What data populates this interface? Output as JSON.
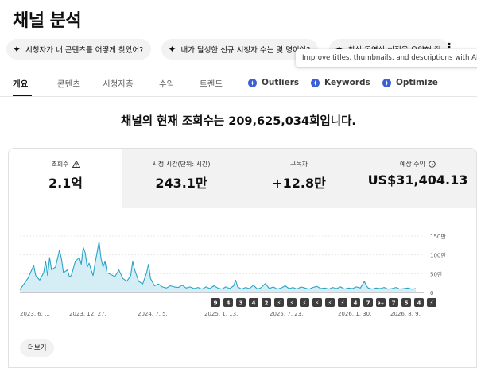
{
  "page": {
    "title": "채널 분석"
  },
  "chips": [
    {
      "label": "시청자가 내 콘텐츠를 어떻게 찾았어?"
    },
    {
      "label": "내가 달성한 신규 시청자 수는 몇 명이야?"
    },
    {
      "label": "최신 동영상 실적을 요약해 줘"
    }
  ],
  "tooltip": {
    "text": "Improve titles, thumbnails, and descriptions with AI su"
  },
  "tabs": [
    {
      "label": "개요",
      "active": true
    },
    {
      "label": "콘텐츠"
    },
    {
      "label": "시청자층"
    },
    {
      "label": "수익"
    },
    {
      "label": "트렌드"
    },
    {
      "label": "Outliers",
      "ai": true
    },
    {
      "label": "Keywords",
      "ai": true
    },
    {
      "label": "Optimize",
      "ai": true
    }
  ],
  "headline": "채널의 현재 조회수는 209,625,034회입니다.",
  "metrics": [
    {
      "label": "조회수",
      "value": "2.1억",
      "icon": "warning-icon",
      "active": true
    },
    {
      "label": "시청 시간(단위: 시간)",
      "value": "243.1만"
    },
    {
      "label": "구독자",
      "value": "+12.8만"
    },
    {
      "label": "예상 수익",
      "value": "US$31,404.13",
      "icon": "clock-icon"
    }
  ],
  "chart_data": {
    "type": "area",
    "x_tick_labels": [
      "2023. 6. ...",
      "2023. 12. 27.",
      "2024. 7. 5.",
      "2025. 1. 13.",
      "2025. 7. 23.",
      "2026. 1. 30.",
      "2026. 8. 9."
    ],
    "y_tick_labels": [
      "150만",
      "100만",
      "50만",
      "0"
    ],
    "ylim": [
      0,
      1500000
    ],
    "y_ticks": [
      1500000,
      1000000,
      500000,
      0
    ],
    "line_color": "#2aa4c6",
    "fill_color": "#d5eef6",
    "markers": [
      "9",
      "4",
      "3",
      "4",
      "2",
      "",
      "",
      "",
      "",
      "",
      "",
      "4",
      "7",
      "9+",
      "7",
      "5",
      "4",
      ""
    ],
    "series_shape": [
      [
        0.0,
        0.05
      ],
      [
        0.02,
        0.25
      ],
      [
        0.03,
        0.4
      ],
      [
        0.035,
        0.48
      ],
      [
        0.04,
        0.3
      ],
      [
        0.05,
        0.22
      ],
      [
        0.06,
        0.35
      ],
      [
        0.065,
        0.55
      ],
      [
        0.07,
        0.3
      ],
      [
        0.075,
        0.62
      ],
      [
        0.08,
        0.4
      ],
      [
        0.09,
        0.45
      ],
      [
        0.1,
        0.75
      ],
      [
        0.105,
        0.6
      ],
      [
        0.11,
        0.35
      ],
      [
        0.12,
        0.4
      ],
      [
        0.125,
        0.28
      ],
      [
        0.13,
        0.3
      ],
      [
        0.14,
        0.55
      ],
      [
        0.15,
        0.62
      ],
      [
        0.155,
        0.5
      ],
      [
        0.16,
        0.8
      ],
      [
        0.165,
        0.7
      ],
      [
        0.17,
        0.45
      ],
      [
        0.175,
        0.52
      ],
      [
        0.18,
        0.4
      ],
      [
        0.185,
        0.3
      ],
      [
        0.19,
        0.52
      ],
      [
        0.2,
        0.9
      ],
      [
        0.205,
        0.6
      ],
      [
        0.21,
        0.45
      ],
      [
        0.215,
        0.55
      ],
      [
        0.22,
        0.35
      ],
      [
        0.23,
        0.32
      ],
      [
        0.24,
        0.28
      ],
      [
        0.25,
        0.4
      ],
      [
        0.26,
        0.25
      ],
      [
        0.27,
        0.2
      ],
      [
        0.28,
        0.3
      ],
      [
        0.285,
        0.55
      ],
      [
        0.29,
        0.4
      ],
      [
        0.3,
        0.2
      ],
      [
        0.31,
        0.15
      ],
      [
        0.32,
        0.35
      ],
      [
        0.325,
        0.5
      ],
      [
        0.33,
        0.25
      ],
      [
        0.34,
        0.12
      ],
      [
        0.35,
        0.15
      ],
      [
        0.36,
        0.1
      ],
      [
        0.37,
        0.08
      ],
      [
        0.38,
        0.12
      ],
      [
        0.39,
        0.1
      ],
      [
        0.4,
        0.09
      ],
      [
        0.41,
        0.13
      ],
      [
        0.42,
        0.08
      ],
      [
        0.43,
        0.1
      ],
      [
        0.44,
        0.07
      ],
      [
        0.45,
        0.09
      ],
      [
        0.46,
        0.06
      ],
      [
        0.47,
        0.1
      ],
      [
        0.48,
        0.07
      ],
      [
        0.49,
        0.12
      ],
      [
        0.5,
        0.08
      ],
      [
        0.51,
        0.06
      ],
      [
        0.52,
        0.1
      ],
      [
        0.53,
        0.07
      ],
      [
        0.54,
        0.12
      ],
      [
        0.545,
        0.22
      ],
      [
        0.55,
        0.1
      ],
      [
        0.56,
        0.06
      ],
      [
        0.57,
        0.09
      ],
      [
        0.58,
        0.07
      ],
      [
        0.59,
        0.13
      ],
      [
        0.6,
        0.06
      ],
      [
        0.61,
        0.09
      ],
      [
        0.62,
        0.16
      ],
      [
        0.63,
        0.07
      ],
      [
        0.64,
        0.1
      ],
      [
        0.65,
        0.06
      ],
      [
        0.66,
        0.08
      ],
      [
        0.67,
        0.12
      ],
      [
        0.68,
        0.07
      ],
      [
        0.69,
        0.09
      ],
      [
        0.7,
        0.06
      ],
      [
        0.71,
        0.1
      ],
      [
        0.72,
        0.08
      ],
      [
        0.73,
        0.06
      ],
      [
        0.74,
        0.09
      ],
      [
        0.75,
        0.11
      ],
      [
        0.76,
        0.07
      ],
      [
        0.77,
        0.08
      ],
      [
        0.78,
        0.06
      ],
      [
        0.79,
        0.09
      ],
      [
        0.8,
        0.07
      ],
      [
        0.81,
        0.1
      ],
      [
        0.82,
        0.06
      ],
      [
        0.83,
        0.08
      ],
      [
        0.84,
        0.07
      ],
      [
        0.85,
        0.1
      ],
      [
        0.86,
        0.08
      ],
      [
        0.87,
        0.2
      ],
      [
        0.875,
        0.12
      ],
      [
        0.88,
        0.08
      ],
      [
        0.89,
        0.06
      ],
      [
        0.9,
        0.08
      ],
      [
        0.91,
        0.07
      ],
      [
        0.92,
        0.09
      ],
      [
        0.93,
        0.06
      ],
      [
        0.94,
        0.07
      ],
      [
        0.95,
        0.09
      ],
      [
        0.96,
        0.06
      ],
      [
        0.97,
        0.07
      ],
      [
        0.98,
        0.08
      ],
      [
        0.99,
        0.06
      ],
      [
        1.0,
        0.07
      ]
    ]
  },
  "more_button": {
    "label": "더보기"
  }
}
